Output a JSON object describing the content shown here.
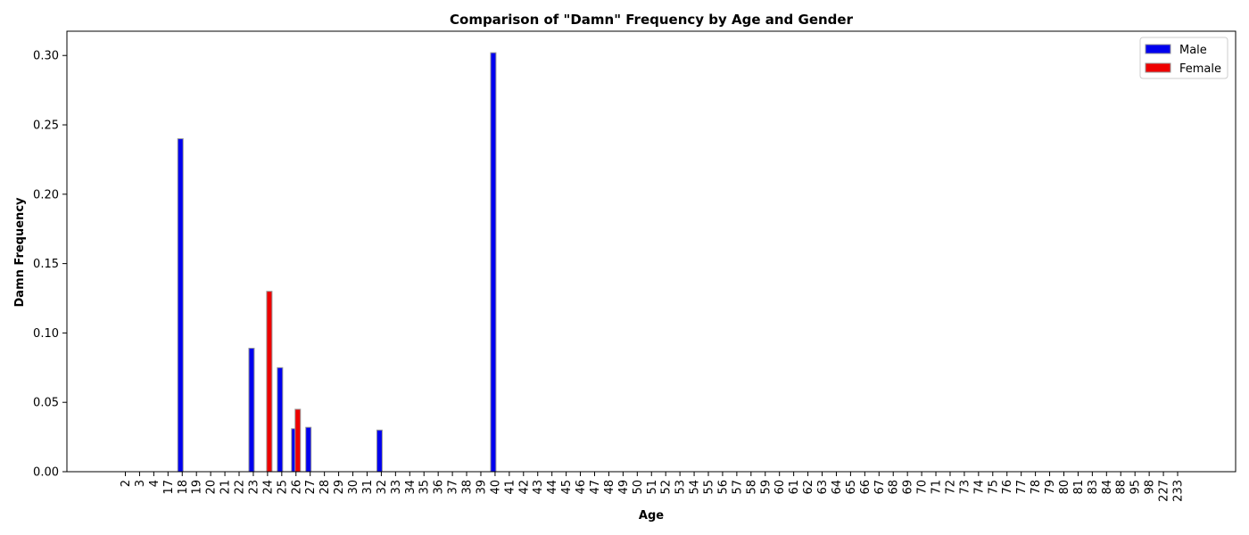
{
  "chart_data": {
    "type": "bar",
    "title": "Comparison of \"Damn\" Frequency by Age and Gender",
    "xlabel": "Age",
    "ylabel": "Damn Frequency",
    "ylim": [
      0,
      0.3175
    ],
    "yticks": [
      "0.00",
      "0.05",
      "0.10",
      "0.15",
      "0.20",
      "0.25",
      "0.30"
    ],
    "legend": {
      "position": "top-right"
    },
    "categories": [
      "2",
      "3",
      "4",
      "17",
      "18",
      "19",
      "20",
      "21",
      "22",
      "23",
      "24",
      "25",
      "26",
      "27",
      "28",
      "29",
      "30",
      "31",
      "32",
      "33",
      "34",
      "35",
      "36",
      "37",
      "38",
      "39",
      "40",
      "41",
      "42",
      "43",
      "44",
      "45",
      "46",
      "47",
      "48",
      "49",
      "50",
      "51",
      "52",
      "53",
      "54",
      "55",
      "56",
      "57",
      "58",
      "59",
      "60",
      "61",
      "62",
      "63",
      "64",
      "65",
      "66",
      "67",
      "68",
      "69",
      "70",
      "71",
      "72",
      "73",
      "74",
      "75",
      "76",
      "77",
      "78",
      "79",
      "80",
      "81",
      "83",
      "84",
      "88",
      "95",
      "98",
      "227",
      "233"
    ],
    "series": [
      {
        "name": "Male",
        "color": "#0000ee",
        "values": [
          0,
          0,
          0,
          0,
          0.24,
          0,
          0,
          0,
          0,
          0.089,
          0,
          0.075,
          0.031,
          0.032,
          0,
          0,
          0,
          0,
          0.03,
          0,
          0,
          0,
          0,
          0,
          0,
          0,
          0.302,
          0,
          0,
          0,
          0,
          0,
          0,
          0,
          0,
          0,
          0,
          0,
          0,
          0,
          0,
          0,
          0,
          0,
          0,
          0,
          0,
          0,
          0,
          0,
          0,
          0,
          0,
          0,
          0,
          0,
          0,
          0,
          0,
          0,
          0,
          0,
          0,
          0,
          0,
          0,
          0,
          0,
          0,
          0,
          0,
          0,
          0,
          0,
          0
        ]
      },
      {
        "name": "Female",
        "color": "#ee0000",
        "values": [
          0,
          0,
          0,
          0,
          0,
          0,
          0,
          0,
          0,
          0,
          0.13,
          0,
          0.045,
          0,
          0,
          0,
          0,
          0,
          0,
          0,
          0,
          0,
          0,
          0,
          0,
          0,
          0,
          0,
          0,
          0,
          0,
          0,
          0,
          0,
          0,
          0,
          0,
          0,
          0,
          0,
          0,
          0,
          0,
          0,
          0,
          0,
          0,
          0,
          0,
          0,
          0,
          0,
          0,
          0,
          0,
          0,
          0,
          0,
          0,
          0,
          0,
          0,
          0,
          0,
          0,
          0,
          0,
          0,
          0,
          0,
          0,
          0,
          0,
          0,
          0
        ]
      }
    ]
  }
}
